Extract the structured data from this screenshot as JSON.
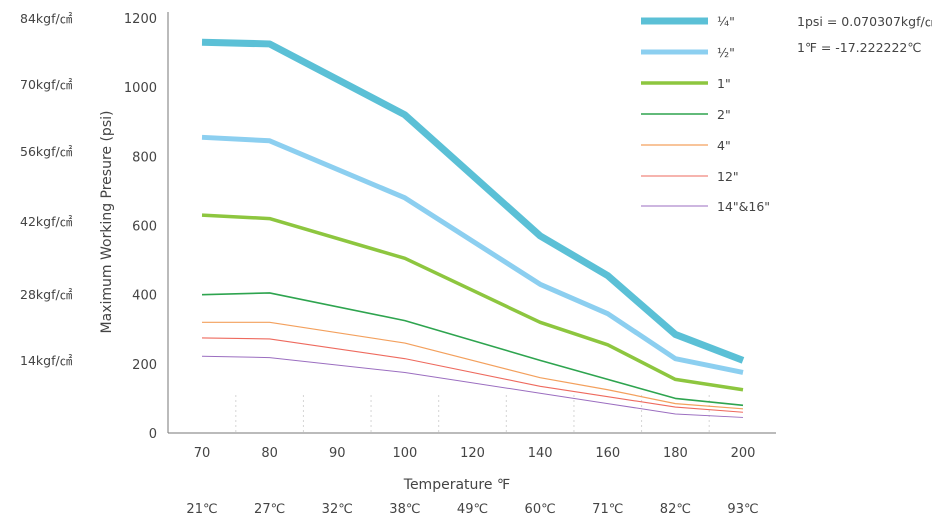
{
  "chart_data": {
    "type": "line",
    "xlabel": "Temperature ℉",
    "ylabel": "Maximum Working Presure (psi)",
    "x": [
      70,
      80,
      90,
      100,
      120,
      140,
      160,
      180,
      200
    ],
    "x_celsius_labels": [
      "21℃",
      "27℃",
      "32℃",
      "38℃",
      "49℃",
      "60℃",
      "71℃",
      "82℃",
      "93℃"
    ],
    "y_ticks": [
      0,
      200,
      400,
      600,
      800,
      1000,
      1200
    ],
    "ylim": [
      0,
      1200
    ],
    "y_kgf_labels": [
      "14kgf/㎠",
      "28kgf/㎠",
      "42kgf/㎠",
      "56kgf/㎠",
      "70kgf/㎠",
      "84kgf/㎠"
    ],
    "grid": "vertical dashed",
    "legend_position": "top-right",
    "series": [
      {
        "name": "¼\"",
        "color": "#5bc0d6",
        "values": [
          1130,
          1125,
          null,
          920,
          null,
          570,
          455,
          285,
          210
        ]
      },
      {
        "name": "½\"",
        "color": "#8ccff0",
        "values": [
          855,
          845,
          null,
          680,
          null,
          430,
          345,
          215,
          175
        ]
      },
      {
        "name": "1\"",
        "color": "#8dc63f",
        "values": [
          630,
          620,
          null,
          505,
          null,
          320,
          255,
          155,
          125
        ]
      },
      {
        "name": "2\"",
        "color": "#2ea44f",
        "values": [
          400,
          405,
          null,
          325,
          null,
          210,
          155,
          100,
          80
        ]
      },
      {
        "name": "4\"",
        "color": "#f3a05d",
        "values": [
          320,
          320,
          null,
          260,
          null,
          160,
          125,
          85,
          70
        ]
      },
      {
        "name": "12\"",
        "color": "#ee6a5e",
        "values": [
          275,
          272,
          null,
          215,
          null,
          135,
          105,
          75,
          60
        ]
      },
      {
        "name": "14\"&16\"",
        "color": "#9b6ec0",
        "values": [
          222,
          218,
          null,
          175,
          null,
          115,
          85,
          55,
          45
        ]
      }
    ],
    "notes": [
      "1psi = 0.070307kgf/㎠",
      "1℉ = -17.222222℃"
    ]
  }
}
